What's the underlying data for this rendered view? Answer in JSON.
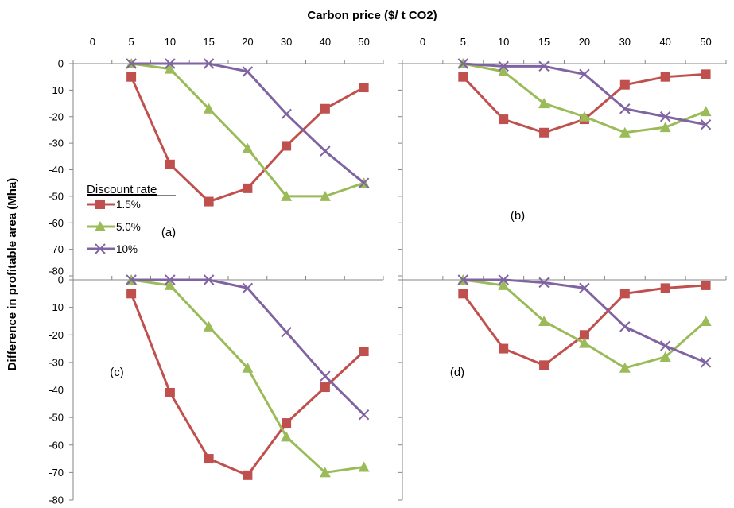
{
  "figure": {
    "xlabel": "Carbon price ($/ t CO2)",
    "ylabel": "Difference in profitable area (Mha)",
    "legend_title": "Discount rate",
    "series_colors": {
      "1.5%": "#C0504D",
      "5.0%": "#9BBB59",
      "10%": "#8064A2"
    }
  },
  "chart_data": [
    {
      "type": "line",
      "panel": "(a)",
      "categories": [
        "0",
        "5",
        "10",
        "15",
        "20",
        "30",
        "40",
        "50"
      ],
      "x": [
        5,
        10,
        15,
        20,
        30,
        40,
        50
      ],
      "ylim": [
        -80,
        0
      ],
      "yticks": [
        0,
        -10,
        -20,
        -30,
        -40,
        -50,
        -60,
        -70,
        -80
      ],
      "legend": "left",
      "series": [
        {
          "name": "1.5%",
          "marker": "square",
          "values": [
            -5,
            -38,
            -52,
            -47,
            -31,
            -17,
            -9
          ]
        },
        {
          "name": "5.0%",
          "marker": "triangle",
          "values": [
            0,
            -2,
            -17,
            -32,
            -50,
            -50,
            -45
          ]
        },
        {
          "name": "10%",
          "marker": "x",
          "values": [
            0,
            0,
            0,
            -3,
            -19,
            -33,
            -45
          ]
        }
      ]
    },
    {
      "type": "line",
      "panel": "(b)",
      "categories": [
        "0",
        "5",
        "10",
        "15",
        "20",
        "30",
        "40",
        "50"
      ],
      "x": [
        5,
        10,
        15,
        20,
        30,
        40,
        50
      ],
      "ylim": [
        -80,
        0
      ],
      "series": [
        {
          "name": "1.5%",
          "marker": "square",
          "values": [
            -5,
            -21,
            -26,
            -21,
            -8,
            -5,
            -4
          ]
        },
        {
          "name": "5.0%",
          "marker": "triangle",
          "values": [
            0,
            -3,
            -15,
            -20,
            -26,
            -24,
            -18
          ]
        },
        {
          "name": "10%",
          "marker": "x",
          "values": [
            0,
            -1,
            -1,
            -4,
            -17,
            -20,
            -23
          ]
        }
      ]
    },
    {
      "type": "line",
      "panel": "(c)",
      "categories": [
        "0",
        "5",
        "10",
        "15",
        "20",
        "30",
        "40",
        "50"
      ],
      "x": [
        5,
        10,
        15,
        20,
        30,
        40,
        50
      ],
      "ylim": [
        -80,
        0
      ],
      "yticks": [
        0,
        -10,
        -20,
        -30,
        -40,
        -50,
        -60,
        -70,
        -80
      ],
      "series": [
        {
          "name": "1.5%",
          "marker": "square",
          "values": [
            -5,
            -41,
            -65,
            -71,
            -52,
            -39,
            -26
          ]
        },
        {
          "name": "5.0%",
          "marker": "triangle",
          "values": [
            0,
            -2,
            -17,
            -32,
            -57,
            -70,
            -68
          ]
        },
        {
          "name": "10%",
          "marker": "x",
          "values": [
            0,
            0,
            0,
            -3,
            -19,
            -35,
            -49
          ]
        }
      ]
    },
    {
      "type": "line",
      "panel": "(d)",
      "categories": [
        "0",
        "5",
        "10",
        "15",
        "20",
        "30",
        "40",
        "50"
      ],
      "x": [
        5,
        10,
        15,
        20,
        30,
        40,
        50
      ],
      "ylim": [
        -80,
        0
      ],
      "series": [
        {
          "name": "1.5%",
          "marker": "square",
          "values": [
            -5,
            -25,
            -31,
            -20,
            -5,
            -3,
            -2
          ]
        },
        {
          "name": "5.0%",
          "marker": "triangle",
          "values": [
            0,
            -2,
            -15,
            -23,
            -32,
            -28,
            -15
          ]
        },
        {
          "name": "10%",
          "marker": "x",
          "values": [
            0,
            0,
            -1,
            -3,
            -17,
            -24,
            -30
          ]
        }
      ]
    }
  ]
}
